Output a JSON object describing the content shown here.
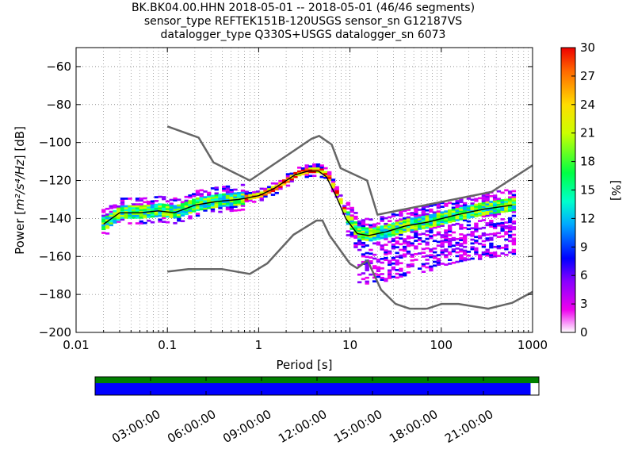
{
  "title_lines": [
    "BK.BK04.00.HHN   2018-05-01 -- 2018-05-01  (46/46 segments)",
    "sensor_type REFTEK151B-120USGS sensor_sn G12187VS",
    "datalogger_type Q330S+USGS datalogger_sn 6073"
  ],
  "chart_data": {
    "type": "heatmap",
    "xlabel": "Period [s]",
    "ylabel_prefix": "Power [",
    "ylabel_unit": "m²/s⁴/Hz",
    "ylabel_suffix": "] [dB]",
    "x_scale": "log",
    "xlim": [
      0.01,
      1000
    ],
    "ylim": [
      -200,
      -50
    ],
    "x_ticks": [
      0.01,
      0.1,
      1,
      10,
      100,
      1000
    ],
    "x_tick_labels": [
      "0.01",
      "0.1",
      "1",
      "10",
      "100",
      "1000"
    ],
    "y_ticks": [
      -200,
      -180,
      -160,
      -140,
      -120,
      -100,
      -80,
      -60
    ],
    "y_tick_labels": [
      "−200",
      "−180",
      "−160",
      "−140",
      "−120",
      "−100",
      "−80",
      "−60"
    ],
    "grid": "dotted",
    "colorbar": {
      "label": "[%]",
      "range": [
        0,
        30
      ],
      "ticks": [
        0,
        3,
        6,
        9,
        12,
        15,
        18,
        21,
        24,
        27,
        30
      ],
      "tick_labels": [
        "0",
        "3",
        "6",
        "9",
        "12",
        "15",
        "18",
        "21",
        "24",
        "27",
        "30"
      ]
    },
    "nhnm": {
      "name": "NHNM",
      "color": "#666666",
      "x": [
        0.1,
        0.22,
        0.32,
        0.8,
        3.8,
        4.6,
        6.3,
        7.9,
        15.4,
        20,
        354.8,
        1000
      ],
      "y": [
        -91.5,
        -97.4,
        -110.5,
        -120,
        -98,
        -96.5,
        -101,
        -113.5,
        -120,
        -138,
        -126,
        -112
      ]
    },
    "nlnm": {
      "name": "NLNM",
      "color": "#666666",
      "x": [
        0.1,
        0.17,
        0.4,
        0.8,
        1.24,
        2.4,
        4.3,
        5,
        6,
        10,
        12,
        15.6,
        21.9,
        31.6,
        45,
        70,
        101,
        154,
        328,
        600,
        1000
      ],
      "y": [
        -168,
        -166.7,
        -166.7,
        -169.2,
        -163.7,
        -148.6,
        -141.1,
        -141.1,
        -149,
        -163.8,
        -166.2,
        -162.1,
        -177.5,
        -185,
        -187.5,
        -187.5,
        -185,
        -185,
        -187.5,
        -184.4,
        -178.6
      ],
      "median": {
        "name": "median",
        "color": "#000000",
        "x": [
          0.02,
          0.03,
          0.05,
          0.08,
          0.12,
          0.2,
          0.35,
          0.6,
          1,
          1.5,
          2.5,
          3.5,
          4.5,
          5.5,
          7,
          9,
          12,
          16,
          25,
          40,
          70,
          150,
          300,
          600
        ],
        "y": [
          -143,
          -137,
          -137,
          -136,
          -137,
          -133,
          -131,
          -130,
          -128,
          -124,
          -117,
          -115,
          -115,
          -118,
          -128,
          -140,
          -148,
          -149,
          -147,
          -144,
          -142,
          -138,
          -135,
          -133
        ]
      }
    }
  },
  "timeline": {
    "tick_labels": [
      "03:00:00",
      "06:00:00",
      "09:00:00",
      "12:00:00",
      "15:00:00",
      "18:00:00",
      "21:00:00"
    ],
    "coverage_hours": [
      0,
      23.55
    ],
    "data_color": "#008000",
    "psd_color": "#0000ff"
  }
}
